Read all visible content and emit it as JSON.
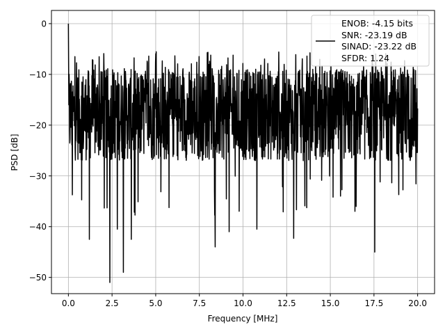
{
  "chart_data": {
    "type": "line",
    "title": "",
    "xlabel": "Frequency [MHz]",
    "ylabel": "PSD [dB]",
    "xlim": [
      -0.97,
      20.97
    ],
    "ylim": [
      -53.2,
      2.6
    ],
    "xticks": [
      0.0,
      2.5,
      5.0,
      7.5,
      10.0,
      12.5,
      15.0,
      17.5,
      20.0
    ],
    "xtick_labels": [
      "0.0",
      "2.5",
      "5.0",
      "7.5",
      "10.0",
      "12.5",
      "15.0",
      "17.5",
      "20.0"
    ],
    "yticks": [
      0,
      -10,
      -20,
      -30,
      -40,
      -50
    ],
    "ytick_labels": [
      "0",
      "−10",
      "−20",
      "−30",
      "−40",
      "−50"
    ],
    "grid": true,
    "legend": {
      "placement": "top-right",
      "lines": [
        "ENOB: -4.15 bits",
        "SNR: -23.19 dB",
        "SINAD: -23.22 dB",
        "SFDR: 1.24"
      ]
    },
    "series": [
      {
        "color": "#000000",
        "n_points": 1500,
        "x_range": [
          0,
          20
        ],
        "peak": {
          "x": 0.0,
          "y": 0.0
        },
        "typical_band": [
          -27,
          -9
        ],
        "upper_extent_approx": -5.5,
        "notable_minima": [
          {
            "x": 2.38,
            "y": -51.0
          },
          {
            "x": 3.15,
            "y": -49.0
          },
          {
            "x": 17.55,
            "y": -45.0
          },
          {
            "x": 8.4,
            "y": -44.0
          },
          {
            "x": 1.2,
            "y": -42.5
          },
          {
            "x": 3.6,
            "y": -42.5
          },
          {
            "x": 2.8,
            "y": -40.5
          },
          {
            "x": 9.2,
            "y": -41.0
          },
          {
            "x": 12.9,
            "y": -42.3
          },
          {
            "x": 10.8,
            "y": -40.5
          }
        ]
      }
    ]
  }
}
